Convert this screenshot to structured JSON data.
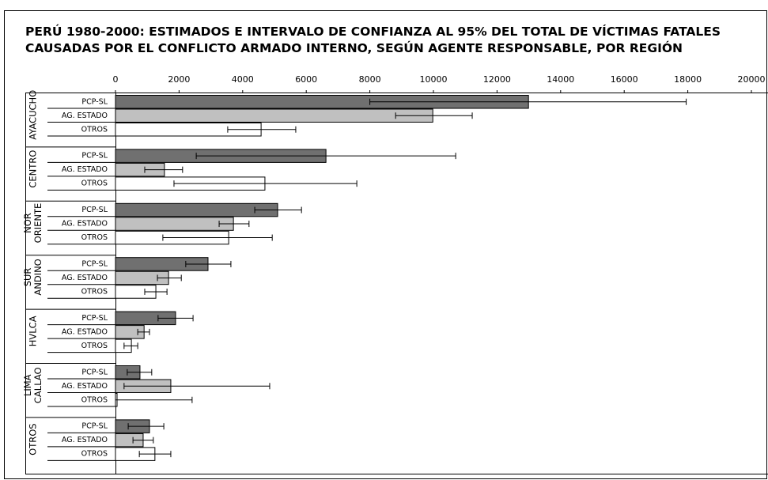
{
  "chart_data": {
    "type": "bar",
    "orientation": "horizontal",
    "title": [
      "PERÚ 1980-2000: ESTIMADOS E INTERVALO DE CONFIANZA AL 95% DEL TOTAL DE VÍCTIMAS FATALES",
      "CAUSADAS POR EL CONFLICTO ARMADO INTERNO, SEGÚN AGENTE RESPONSABLE, POR REGIÓN"
    ],
    "categories": [
      [
        "AYACUCHO"
      ],
      [
        "CENTRO"
      ],
      [
        "NOR",
        "ORIENTE"
      ],
      [
        "SUR",
        "ANDINO"
      ],
      [
        "HVLCA"
      ],
      [
        "LIMA",
        "CALLAO"
      ],
      [
        "OTROS"
      ]
    ],
    "series": [
      {
        "name": "PCP-SL",
        "color": "#707070",
        "values": [
          12990,
          6620,
          5100,
          2910,
          1890,
          770,
          1070
        ],
        "error_low": [
          8000,
          2540,
          4380,
          2210,
          1340,
          370,
          400
        ],
        "error_high": [
          17950,
          10700,
          5850,
          3630,
          2440,
          1140,
          1520
        ]
      },
      {
        "name": "AG. ESTADO",
        "color": "#c0c0c0",
        "values": [
          9980,
          1540,
          3710,
          1670,
          900,
          1740,
          870
        ],
        "error_low": [
          8810,
          920,
          3260,
          1320,
          700,
          270,
          550
        ],
        "error_high": [
          11220,
          2110,
          4200,
          2070,
          1070,
          4850,
          1190
        ]
      },
      {
        "name": "OTROS",
        "color": "#ffffff",
        "values": [
          4580,
          4700,
          3560,
          1270,
          500,
          50,
          1240
        ],
        "error_low": [
          3530,
          1840,
          1490,
          920,
          270,
          0,
          750
        ],
        "error_high": [
          5670,
          7590,
          4930,
          1620,
          700,
          2410,
          1740
        ]
      }
    ],
    "xlim": [
      0,
      20000
    ],
    "xticks": [
      0,
      2000,
      4000,
      6000,
      8000,
      10000,
      12000,
      14000,
      16000,
      18000,
      20000
    ]
  }
}
